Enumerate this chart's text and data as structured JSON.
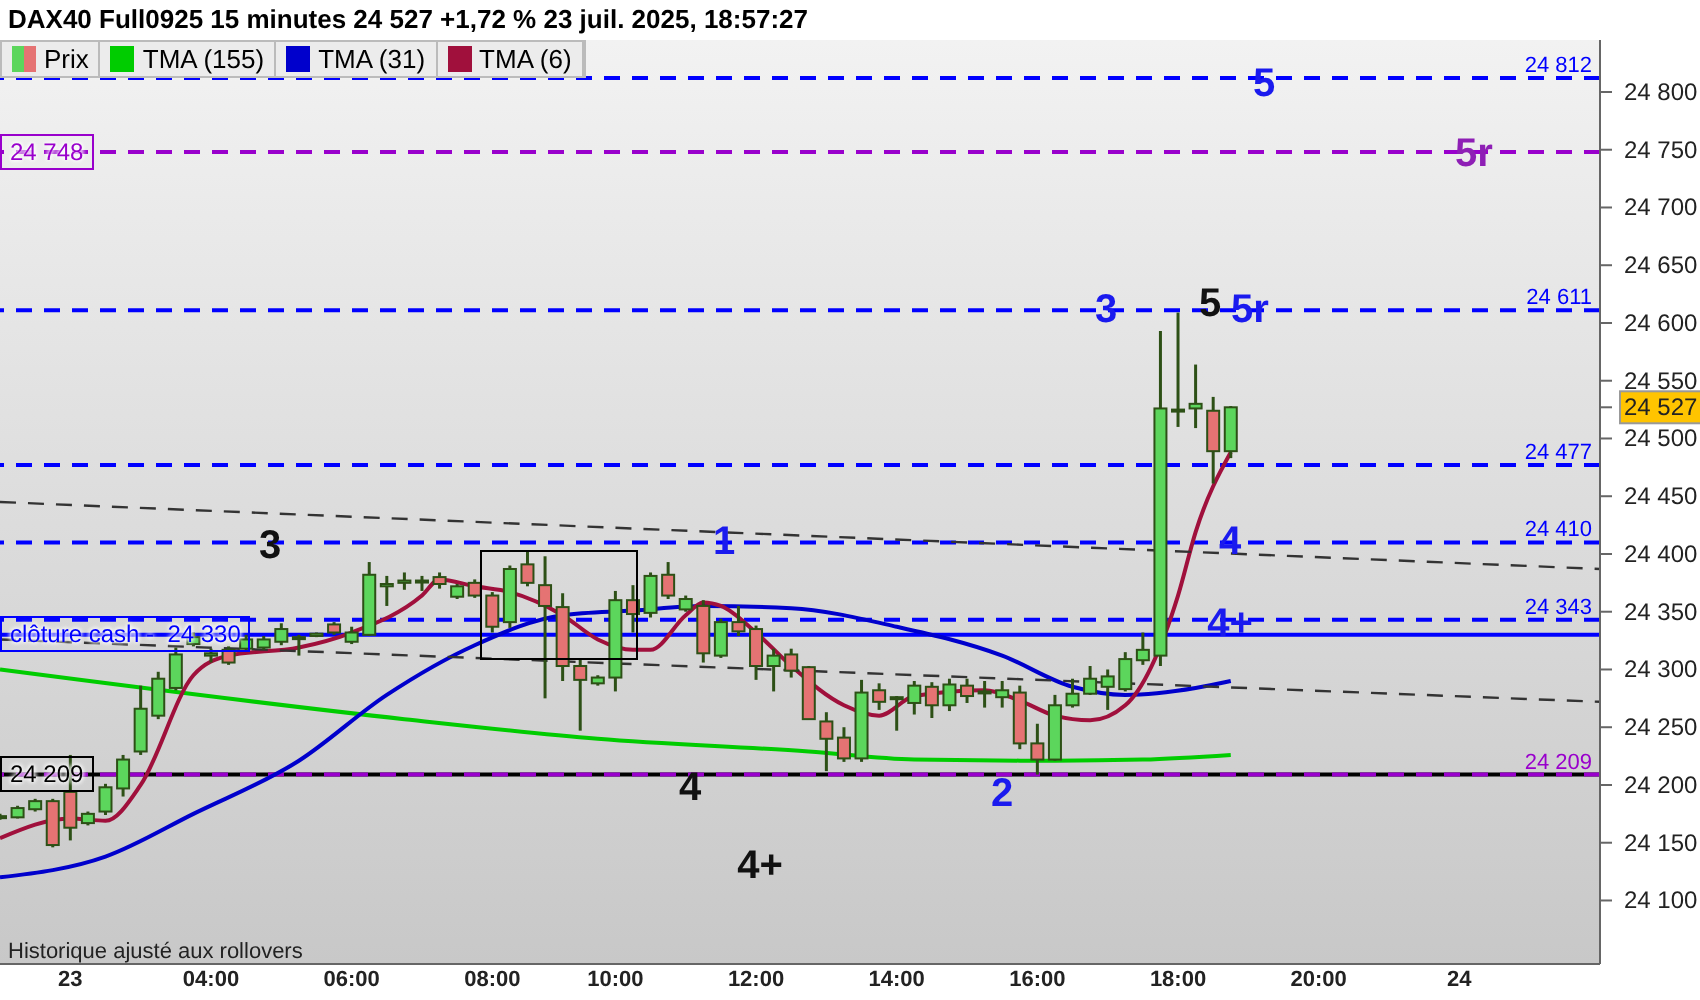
{
  "chart_data": {
    "type": "candlestick",
    "title": "DAX40 Full0925 15 minutes 24 527 +1,72 % 23 juil. 2025, 18:57:27",
    "categories": [
      null,
      null,
      null,
      null,
      "23",
      null,
      null,
      null,
      null,
      null,
      null,
      null,
      "04:00",
      null,
      null,
      null,
      null,
      null,
      null,
      null,
      "06:00",
      null,
      null,
      null,
      null,
      null,
      null,
      null,
      "08:00",
      null,
      null,
      null,
      null,
      null,
      null,
      "10:00",
      null,
      null,
      null,
      null,
      null,
      null,
      null,
      "12:00",
      null,
      null,
      null,
      null,
      null,
      null,
      null,
      "14:00",
      null,
      null,
      null,
      null,
      null,
      null,
      null,
      "16:00",
      null,
      null,
      null,
      null,
      null,
      null,
      null,
      "18:00",
      null,
      null,
      null,
      null,
      null,
      null,
      null,
      "20:00",
      null,
      null,
      null,
      null,
      null,
      null,
      null,
      "24",
      null,
      null,
      null,
      null,
      null,
      null,
      null,
      null
    ],
    "ylim": [
      24045,
      24845
    ],
    "yticks": [
      {
        "value": 24100,
        "label": "24 100"
      },
      {
        "value": 24150,
        "label": "24 150"
      },
      {
        "value": 24200,
        "label": "24 200"
      },
      {
        "value": 24250,
        "label": "24 250"
      },
      {
        "value": 24300,
        "label": "24 300"
      },
      {
        "value": 24350,
        "label": "24 350"
      },
      {
        "value": 24400,
        "label": "24 400"
      },
      {
        "value": 24450,
        "label": "24 450"
      },
      {
        "value": 24500,
        "label": "24 500"
      },
      {
        "value": 24550,
        "label": "24 550"
      },
      {
        "value": 24600,
        "label": "24 600"
      },
      {
        "value": 24650,
        "label": "24 650"
      },
      {
        "value": 24700,
        "label": "24 700"
      },
      {
        "value": 24750,
        "label": "24 750"
      },
      {
        "value": 24800,
        "label": "24 800"
      },
      {
        "value": 24527,
        "label": "24 527"
      }
    ],
    "legend": "top left",
    "series": [
      {
        "name": "Prix",
        "colors": [
          "#5cd65c",
          "#5cd65c",
          "#5cd65c",
          "#e57373",
          "#e57373",
          "#5cd65c",
          "#5cd65c",
          "#5cd65c",
          "#5cd65c",
          "#5cd65c",
          "#5cd65c",
          "#5cd65c",
          "#5cd65c",
          "#e57373",
          "#5cd65c",
          "#5cd65c",
          "#5cd65c",
          "#5cd65c",
          "#5cd65c",
          "#e57373",
          "#5cd65c",
          "#5cd65c",
          "#5cd65c",
          "#5cd65c",
          "#5cd65c",
          "#e57373",
          "#5cd65c",
          "#e57373",
          "#e57373",
          "#5cd65c",
          "#e57373",
          "#e57373",
          "#e57373",
          "#e57373",
          "#5cd65c",
          "#5cd65c",
          "#e57373",
          "#5cd65c",
          "#e57373",
          "#5cd65c",
          "#e57373",
          "#5cd65c",
          "#e57373",
          "#e57373",
          "#5cd65c",
          "#e57373",
          "#e57373",
          "#e57373",
          "#e57373",
          "#5cd65c",
          "#e57373",
          "#e57373",
          "#5cd65c",
          "#e57373",
          "#5cd65c",
          "#e57373",
          "#e57373",
          "#5cd65c",
          "#e57373",
          "#e57373",
          "#5cd65c",
          "#5cd65c",
          "#5cd65c",
          "#5cd65c",
          "#5cd65c",
          "#5cd65c",
          "#5cd65c",
          "#5cd65c",
          "#5cd65c",
          "#e57373",
          "#5cd65c",
          null,
          null,
          null,
          null,
          null,
          null,
          null,
          null,
          null,
          null,
          null,
          null,
          null,
          null,
          null,
          null,
          null,
          null,
          null,
          null,
          null
        ],
        "ohlc": [
          [
            24172,
            24175,
            24170,
            24173
          ],
          [
            24172,
            24182,
            24171,
            24180
          ],
          [
            24179,
            24188,
            24177,
            24186
          ],
          [
            24186,
            24188,
            24146,
            24148
          ],
          [
            24194,
            24226,
            24152,
            24163
          ],
          [
            24167,
            24177,
            24165,
            24175
          ],
          [
            24177,
            24201,
            24174,
            24198
          ],
          [
            24197,
            24226,
            24190,
            24222
          ],
          [
            24229,
            24286,
            24226,
            24266
          ],
          [
            24260,
            24298,
            24257,
            24292
          ],
          [
            24284,
            24319,
            24282,
            24313
          ],
          [
            24322,
            24332,
            24320,
            24328
          ],
          [
            24312,
            24318,
            24306,
            24314
          ],
          [
            24317,
            24320,
            24304,
            24306
          ],
          [
            24318,
            24330,
            24316,
            24326
          ],
          [
            24319,
            24329,
            24317,
            24326
          ],
          [
            24324,
            24340,
            24321,
            24335
          ],
          [
            24327,
            24330,
            24312,
            24328
          ],
          [
            24329,
            24332,
            24328,
            24331
          ],
          [
            24339,
            24341,
            24330,
            24332
          ],
          [
            24324,
            24337,
            24322,
            24332
          ],
          [
            24330,
            24393,
            24329,
            24382
          ],
          [
            24372,
            24381,
            24355,
            24374
          ],
          [
            24375,
            24384,
            24369,
            24377
          ],
          [
            24376,
            24381,
            24368,
            24377
          ],
          [
            24380,
            24384,
            24370,
            24374
          ],
          [
            24363,
            24374,
            24361,
            24372
          ],
          [
            24375,
            24378,
            24362,
            24364
          ],
          [
            24364,
            24367,
            24332,
            24337
          ],
          [
            24341,
            24390,
            24336,
            24387
          ],
          [
            24391,
            24403,
            24372,
            24375
          ],
          [
            24373,
            24398,
            24275,
            24355
          ],
          [
            24354,
            24366,
            24290,
            24303
          ],
          [
            24303,
            24309,
            24247,
            24291
          ],
          [
            24288,
            24295,
            24286,
            24293
          ],
          [
            24293,
            24368,
            24281,
            24360
          ],
          [
            24360,
            24373,
            24332,
            24348
          ],
          [
            24349,
            24384,
            24345,
            24381
          ],
          [
            24382,
            24393,
            24361,
            24364
          ],
          [
            24352,
            24364,
            24350,
            24361
          ],
          [
            24355,
            24360,
            24306,
            24314
          ],
          [
            24312,
            24344,
            24310,
            24341
          ],
          [
            24341,
            24355,
            24329,
            24333
          ],
          [
            24335,
            24338,
            24291,
            24303
          ],
          [
            24303,
            24318,
            24281,
            24312
          ],
          [
            24313,
            24318,
            24293,
            24299
          ],
          [
            24302,
            24303,
            24257,
            24257
          ],
          [
            24255,
            24263,
            24212,
            24240
          ],
          [
            24241,
            24250,
            24220,
            24223
          ],
          [
            24223,
            24291,
            24220,
            24280
          ],
          [
            24282,
            24288,
            24265,
            24272
          ],
          [
            24276,
            24277,
            24247,
            24275
          ],
          [
            24271,
            24290,
            24261,
            24286
          ],
          [
            24285,
            24289,
            24258,
            24269
          ],
          [
            24269,
            24292,
            24264,
            24287
          ],
          [
            24286,
            24292,
            24271,
            24277
          ],
          [
            24281,
            24290,
            24267,
            24280
          ],
          [
            24276,
            24290,
            24267,
            24282
          ],
          [
            24280,
            24286,
            24231,
            24236
          ],
          [
            24236,
            24253,
            24209,
            24222
          ],
          [
            24222,
            24278,
            24221,
            24269
          ],
          [
            24269,
            24292,
            24267,
            24279
          ],
          [
            24279,
            24303,
            24278,
            24292
          ],
          [
            24285,
            24300,
            24265,
            24294
          ],
          [
            24283,
            24315,
            24281,
            24309
          ],
          [
            24308,
            24332,
            24304,
            24317
          ],
          [
            24312,
            24593,
            24303,
            24526
          ],
          [
            24524,
            24609,
            24510,
            24525
          ],
          [
            24526,
            24564,
            24509,
            24530
          ],
          [
            24524,
            24536,
            24461,
            24489
          ],
          [
            24489,
            24528,
            24483,
            24527
          ],
          null,
          null,
          null,
          null,
          null,
          null,
          null,
          null,
          null,
          null,
          null,
          null,
          null,
          null,
          null,
          null,
          null,
          null,
          null,
          null,
          null
        ]
      },
      {
        "type": "line",
        "name": "TMA (155)",
        "color": "#00cc00",
        "values": [
          24300,
          null,
          null,
          null,
          null,
          null,
          null,
          null,
          null,
          null,
          null,
          null,
          null,
          null,
          null,
          null,
          null,
          null,
          null,
          null,
          null,
          null,
          null,
          24257,
          null,
          null,
          null,
          null,
          null,
          null,
          null,
          null,
          null,
          null,
          24240,
          null,
          null,
          null,
          null,
          null,
          null,
          null,
          null,
          null,
          null,
          null,
          24229,
          null,
          null,
          null,
          null,
          null,
          24222,
          null,
          null,
          null,
          null,
          null,
          null,
          null,
          24221,
          null,
          null,
          null,
          null,
          24222,
          null,
          null,
          null,
          null,
          24226,
          null,
          null,
          null,
          null,
          null,
          null,
          null,
          null,
          null,
          null,
          null,
          null,
          null,
          null,
          null,
          null,
          null,
          null,
          null,
          null,
          null
        ]
      },
      {
        "type": "line",
        "name": "TMA (31)",
        "color": "#0000cc",
        "values": [
          24120,
          null,
          null,
          null,
          null,
          null,
          24138,
          null,
          null,
          null,
          null,
          24175,
          null,
          null,
          null,
          null,
          null,
          24221,
          null,
          null,
          null,
          null,
          24278,
          null,
          null,
          null,
          null,
          24321,
          null,
          null,
          null,
          null,
          24347,
          null,
          null,
          null,
          24351,
          null,
          null,
          null,
          24355,
          null,
          null,
          null,
          null,
          24353,
          null,
          null,
          null,
          null,
          null,
          24337,
          null,
          null,
          null,
          null,
          null,
          24312,
          null,
          null,
          null,
          24285,
          null,
          null,
          24278,
          null,
          null,
          null,
          24284,
          null,
          24290,
          null,
          null,
          null,
          null,
          null,
          null,
          null,
          null,
          null,
          null,
          null,
          null,
          null,
          null,
          null,
          null,
          null,
          null,
          null,
          null,
          null
        ]
      },
      {
        "type": "line",
        "name": "TMA (6)",
        "color": "#a0103c",
        "values": [
          24154,
          null,
          null,
          null,
          24171,
          null,
          24169,
          null,
          24200,
          null,
          null,
          24295,
          null,
          24312,
          null,
          null,
          null,
          24319,
          null,
          null,
          24332,
          null,
          null,
          null,
          24364,
          24378,
          null,
          24372,
          null,
          24367,
          null,
          null,
          24347,
          null,
          24326,
          null,
          24317,
          24317,
          null,
          24347,
          24358,
          24355,
          null,
          24332,
          null,
          24303,
          null,
          null,
          24269,
          null,
          24260,
          null,
          24277,
          null,
          null,
          null,
          24282,
          null,
          24273,
          null,
          24260,
          null,
          24256,
          null,
          24269,
          null,
          null,
          24364,
          24419,
          null,
          24488,
          null,
          null,
          null,
          null,
          null,
          null,
          null,
          null,
          null,
          null,
          null,
          null,
          null,
          null,
          null,
          null,
          null,
          null,
          null,
          null,
          null
        ]
      },
      {
        "type": "line",
        "color": "#333333",
        "line_style": "dashed",
        "values": [
          24445,
          null,
          null,
          null,
          null,
          null,
          null,
          null,
          null,
          null,
          null,
          null,
          null,
          null,
          null,
          null,
          null,
          null,
          null,
          null,
          null,
          null,
          null,
          null,
          null,
          null,
          null,
          null,
          null,
          null,
          null,
          null,
          null,
          null,
          null,
          null,
          null,
          null,
          null,
          null,
          null,
          null,
          null,
          null,
          null,
          null,
          null,
          null,
          null,
          null,
          null,
          null,
          null,
          null,
          null,
          null,
          null,
          null,
          null,
          null,
          null,
          null,
          null,
          null,
          null,
          null,
          null,
          null,
          null,
          null,
          null,
          null,
          null,
          null,
          null,
          null,
          null,
          null,
          null,
          null,
          null,
          null,
          null,
          null,
          null,
          null,
          null,
          null,
          null,
          null,
          null,
          24387
        ]
      },
      {
        "type": "line",
        "color": "#333333",
        "line_style": "dashed",
        "values": [
          24326,
          null,
          null,
          null,
          null,
          null,
          null,
          null,
          null,
          null,
          null,
          null,
          null,
          null,
          null,
          null,
          null,
          null,
          null,
          null,
          null,
          null,
          null,
          null,
          null,
          null,
          null,
          null,
          null,
          null,
          null,
          null,
          null,
          null,
          null,
          null,
          null,
          null,
          null,
          null,
          null,
          null,
          null,
          null,
          null,
          null,
          null,
          null,
          null,
          null,
          null,
          null,
          null,
          null,
          null,
          null,
          null,
          null,
          null,
          null,
          null,
          null,
          null,
          null,
          null,
          null,
          null,
          null,
          null,
          null,
          null,
          null,
          null,
          null,
          null,
          null,
          null,
          null,
          null,
          null,
          null,
          null,
          null,
          null,
          null,
          null,
          null,
          null,
          null,
          null,
          null,
          24272
        ]
      }
    ],
    "ref_lines": [
      {
        "axis": "y",
        "value": 24812,
        "label": "24 812",
        "color": "#0000ff",
        "line_style": "dashed"
      },
      {
        "axis": "y",
        "value": 24748,
        "label": "24 748",
        "color": "#9900cc",
        "line_style": "dashed"
      },
      {
        "axis": "y",
        "value": 24611,
        "label": "24 611",
        "color": "#0000ff",
        "line_style": "dashed"
      },
      {
        "axis": "y",
        "value": 24477,
        "label": "24 477",
        "color": "#0000ff",
        "line_style": "dashed"
      },
      {
        "axis": "y",
        "value": 24410,
        "label": "24 410",
        "color": "#0000ff",
        "line_style": "dashed"
      },
      {
        "axis": "y",
        "value": 24343,
        "label": "24 343",
        "color": "#0000ff",
        "line_style": "dashed"
      },
      {
        "axis": "y",
        "value": 24330,
        "label": "clôture cash -  24 330",
        "color": "#0000ff",
        "line_style": "solid"
      },
      {
        "axis": "y",
        "value": 24209,
        "label": "24 209",
        "color": "#000000",
        "line_style": "solid"
      },
      {
        "axis": "y",
        "value": 24209,
        "label": "24 209",
        "color": "#9900cc",
        "line_style": "dashed"
      }
    ],
    "annotations": [
      "5",
      "5r",
      "3",
      "5",
      "5r",
      "4",
      "4+",
      "3",
      "1",
      "4",
      "2",
      "4+",
      "Historique ajusté aux rollovers"
    ]
  }
}
